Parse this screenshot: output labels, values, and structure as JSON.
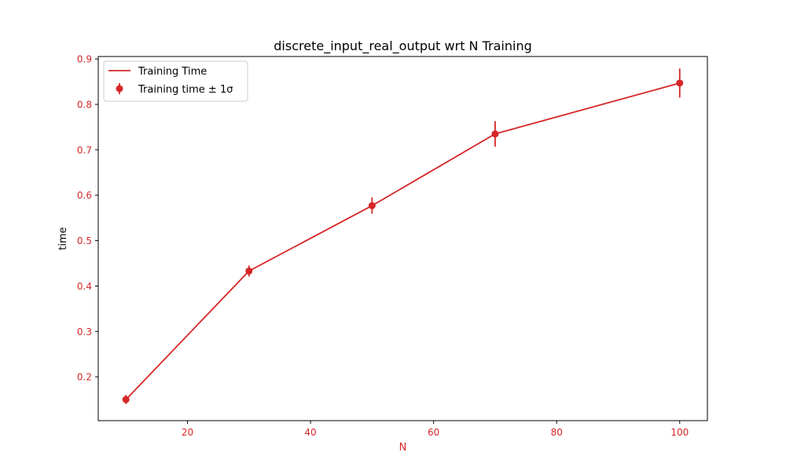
{
  "chart_data": {
    "type": "line",
    "title": "discrete_input_real_output wrt N Training",
    "xlabel": "N",
    "ylabel": "time",
    "xlim": [
      5.5,
      104.5
    ],
    "ylim": [
      0.1035,
      0.9055
    ],
    "x_ticks": [
      20,
      40,
      60,
      80,
      100
    ],
    "y_ticks": [
      0.2,
      0.3,
      0.4,
      0.5,
      0.6,
      0.7,
      0.8,
      0.9
    ],
    "x_tick_labels": [
      "20",
      "40",
      "60",
      "80",
      "100"
    ],
    "y_tick_labels": [
      "0.2",
      "0.3",
      "0.4",
      "0.5",
      "0.6",
      "0.7",
      "0.8",
      "0.9"
    ],
    "grid": false,
    "legend_position": "upper-left",
    "colors": {
      "series": "#d62728",
      "axis_text": "#d62728",
      "frame": "#000000"
    },
    "series": [
      {
        "name": "Training Time",
        "kind": "line",
        "x": [
          10,
          30,
          50,
          70,
          100
        ],
        "y": [
          0.15,
          0.433,
          0.577,
          0.735,
          0.847
        ]
      },
      {
        "name": "Training time ± 1σ",
        "kind": "errorbar",
        "x": [
          10,
          30,
          50,
          70,
          100
        ],
        "y": [
          0.15,
          0.433,
          0.577,
          0.735,
          0.847
        ],
        "yerr": [
          0.01,
          0.012,
          0.018,
          0.028,
          0.032
        ]
      }
    ]
  }
}
